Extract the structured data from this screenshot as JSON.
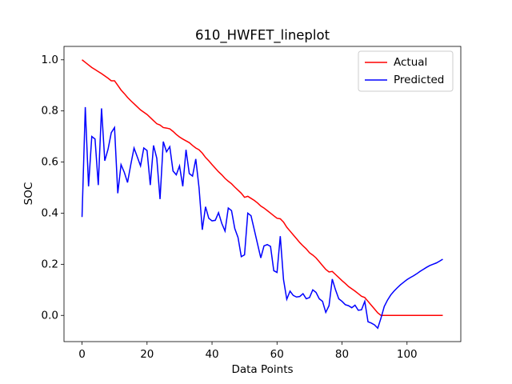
{
  "chart_data": {
    "type": "line",
    "title": "610_HWFET_lineplot",
    "xlabel": "Data Points",
    "ylabel": "SOC",
    "x": [
      0,
      1,
      2,
      3,
      4,
      5,
      6,
      7,
      8,
      9,
      10,
      11,
      12,
      13,
      14,
      15,
      16,
      17,
      18,
      19,
      20,
      21,
      22,
      23,
      24,
      25,
      26,
      27,
      28,
      29,
      30,
      31,
      32,
      33,
      34,
      35,
      36,
      37,
      38,
      39,
      40,
      41,
      42,
      43,
      44,
      45,
      46,
      47,
      48,
      49,
      50,
      51,
      52,
      53,
      54,
      55,
      56,
      57,
      58,
      59,
      60,
      61,
      62,
      63,
      64,
      65,
      66,
      67,
      68,
      69,
      70,
      71,
      72,
      73,
      74,
      75,
      76,
      77,
      78,
      79,
      80,
      81,
      82,
      83,
      84,
      85,
      86,
      87,
      88,
      89,
      90,
      91,
      92,
      93,
      94,
      95,
      96,
      97,
      98,
      99,
      100,
      101,
      102,
      103,
      104,
      105,
      106,
      107,
      108,
      109,
      110,
      111
    ],
    "series": [
      {
        "name": "Actual",
        "color": "#ff0000",
        "values": [
          1.0,
          0.99,
          0.98,
          0.97,
          0.962,
          0.954,
          0.946,
          0.937,
          0.928,
          0.918,
          0.918,
          0.9,
          0.882,
          0.868,
          0.853,
          0.84,
          0.828,
          0.816,
          0.804,
          0.795,
          0.786,
          0.774,
          0.762,
          0.75,
          0.745,
          0.735,
          0.733,
          0.73,
          0.72,
          0.708,
          0.698,
          0.69,
          0.683,
          0.676,
          0.665,
          0.655,
          0.648,
          0.635,
          0.618,
          0.605,
          0.59,
          0.576,
          0.562,
          0.55,
          0.536,
          0.525,
          0.515,
          0.502,
          0.49,
          0.478,
          0.462,
          0.466,
          0.458,
          0.45,
          0.44,
          0.428,
          0.42,
          0.41,
          0.4,
          0.39,
          0.38,
          0.378,
          0.365,
          0.345,
          0.33,
          0.315,
          0.3,
          0.285,
          0.272,
          0.26,
          0.245,
          0.236,
          0.225,
          0.21,
          0.195,
          0.18,
          0.17,
          0.172,
          0.16,
          0.148,
          0.136,
          0.125,
          0.113,
          0.104,
          0.095,
          0.085,
          0.075,
          0.07,
          0.055,
          0.04,
          0.025,
          0.01,
          0.0,
          0.0,
          0.0,
          0.0,
          0.0,
          0.0,
          0.0,
          0.0,
          0.0,
          0.0,
          0.0,
          0.0,
          0.0,
          0.0,
          0.0,
          0.0,
          0.0,
          0.0,
          0.0,
          0.0
        ]
      },
      {
        "name": "Predicted",
        "color": "#0000ff",
        "values": [
          0.385,
          0.815,
          0.505,
          0.7,
          0.69,
          0.51,
          0.81,
          0.605,
          0.65,
          0.715,
          0.735,
          0.478,
          0.59,
          0.56,
          0.52,
          0.59,
          0.655,
          0.62,
          0.585,
          0.655,
          0.645,
          0.51,
          0.665,
          0.615,
          0.455,
          0.68,
          0.64,
          0.66,
          0.565,
          0.55,
          0.585,
          0.505,
          0.648,
          0.555,
          0.545,
          0.612,
          0.5,
          0.335,
          0.425,
          0.38,
          0.37,
          0.372,
          0.402,
          0.36,
          0.33,
          0.42,
          0.41,
          0.34,
          0.305,
          0.23,
          0.237,
          0.4,
          0.39,
          0.335,
          0.28,
          0.225,
          0.272,
          0.277,
          0.27,
          0.175,
          0.168,
          0.31,
          0.14,
          0.063,
          0.095,
          0.078,
          0.072,
          0.074,
          0.085,
          0.065,
          0.07,
          0.1,
          0.09,
          0.065,
          0.055,
          0.012,
          0.038,
          0.142,
          0.1,
          0.065,
          0.055,
          0.042,
          0.038,
          0.03,
          0.04,
          0.02,
          0.022,
          0.055,
          -0.025,
          -0.03,
          -0.037,
          -0.05,
          -0.01,
          0.035,
          0.06,
          0.08,
          0.095,
          0.108,
          0.12,
          0.13,
          0.14,
          0.148,
          0.155,
          0.163,
          0.172,
          0.18,
          0.188,
          0.195,
          0.2,
          0.205,
          0.212,
          0.22
        ]
      }
    ],
    "xlim": [
      -5.55,
      116.55
    ],
    "ylim": [
      -0.1025,
      1.0525
    ],
    "xticks": [
      0,
      20,
      40,
      60,
      80,
      100
    ],
    "yticks": [
      {
        "value": 0,
        "label": "0.0"
      },
      {
        "value": 0.2,
        "label": "0.2"
      },
      {
        "value": 0.4,
        "label": "0.4"
      },
      {
        "value": 0.6,
        "label": "0.6"
      },
      {
        "value": 0.8,
        "label": "0.8"
      },
      {
        "value": 1,
        "label": "1.0"
      }
    ],
    "legend": "upper right",
    "grid": false
  }
}
